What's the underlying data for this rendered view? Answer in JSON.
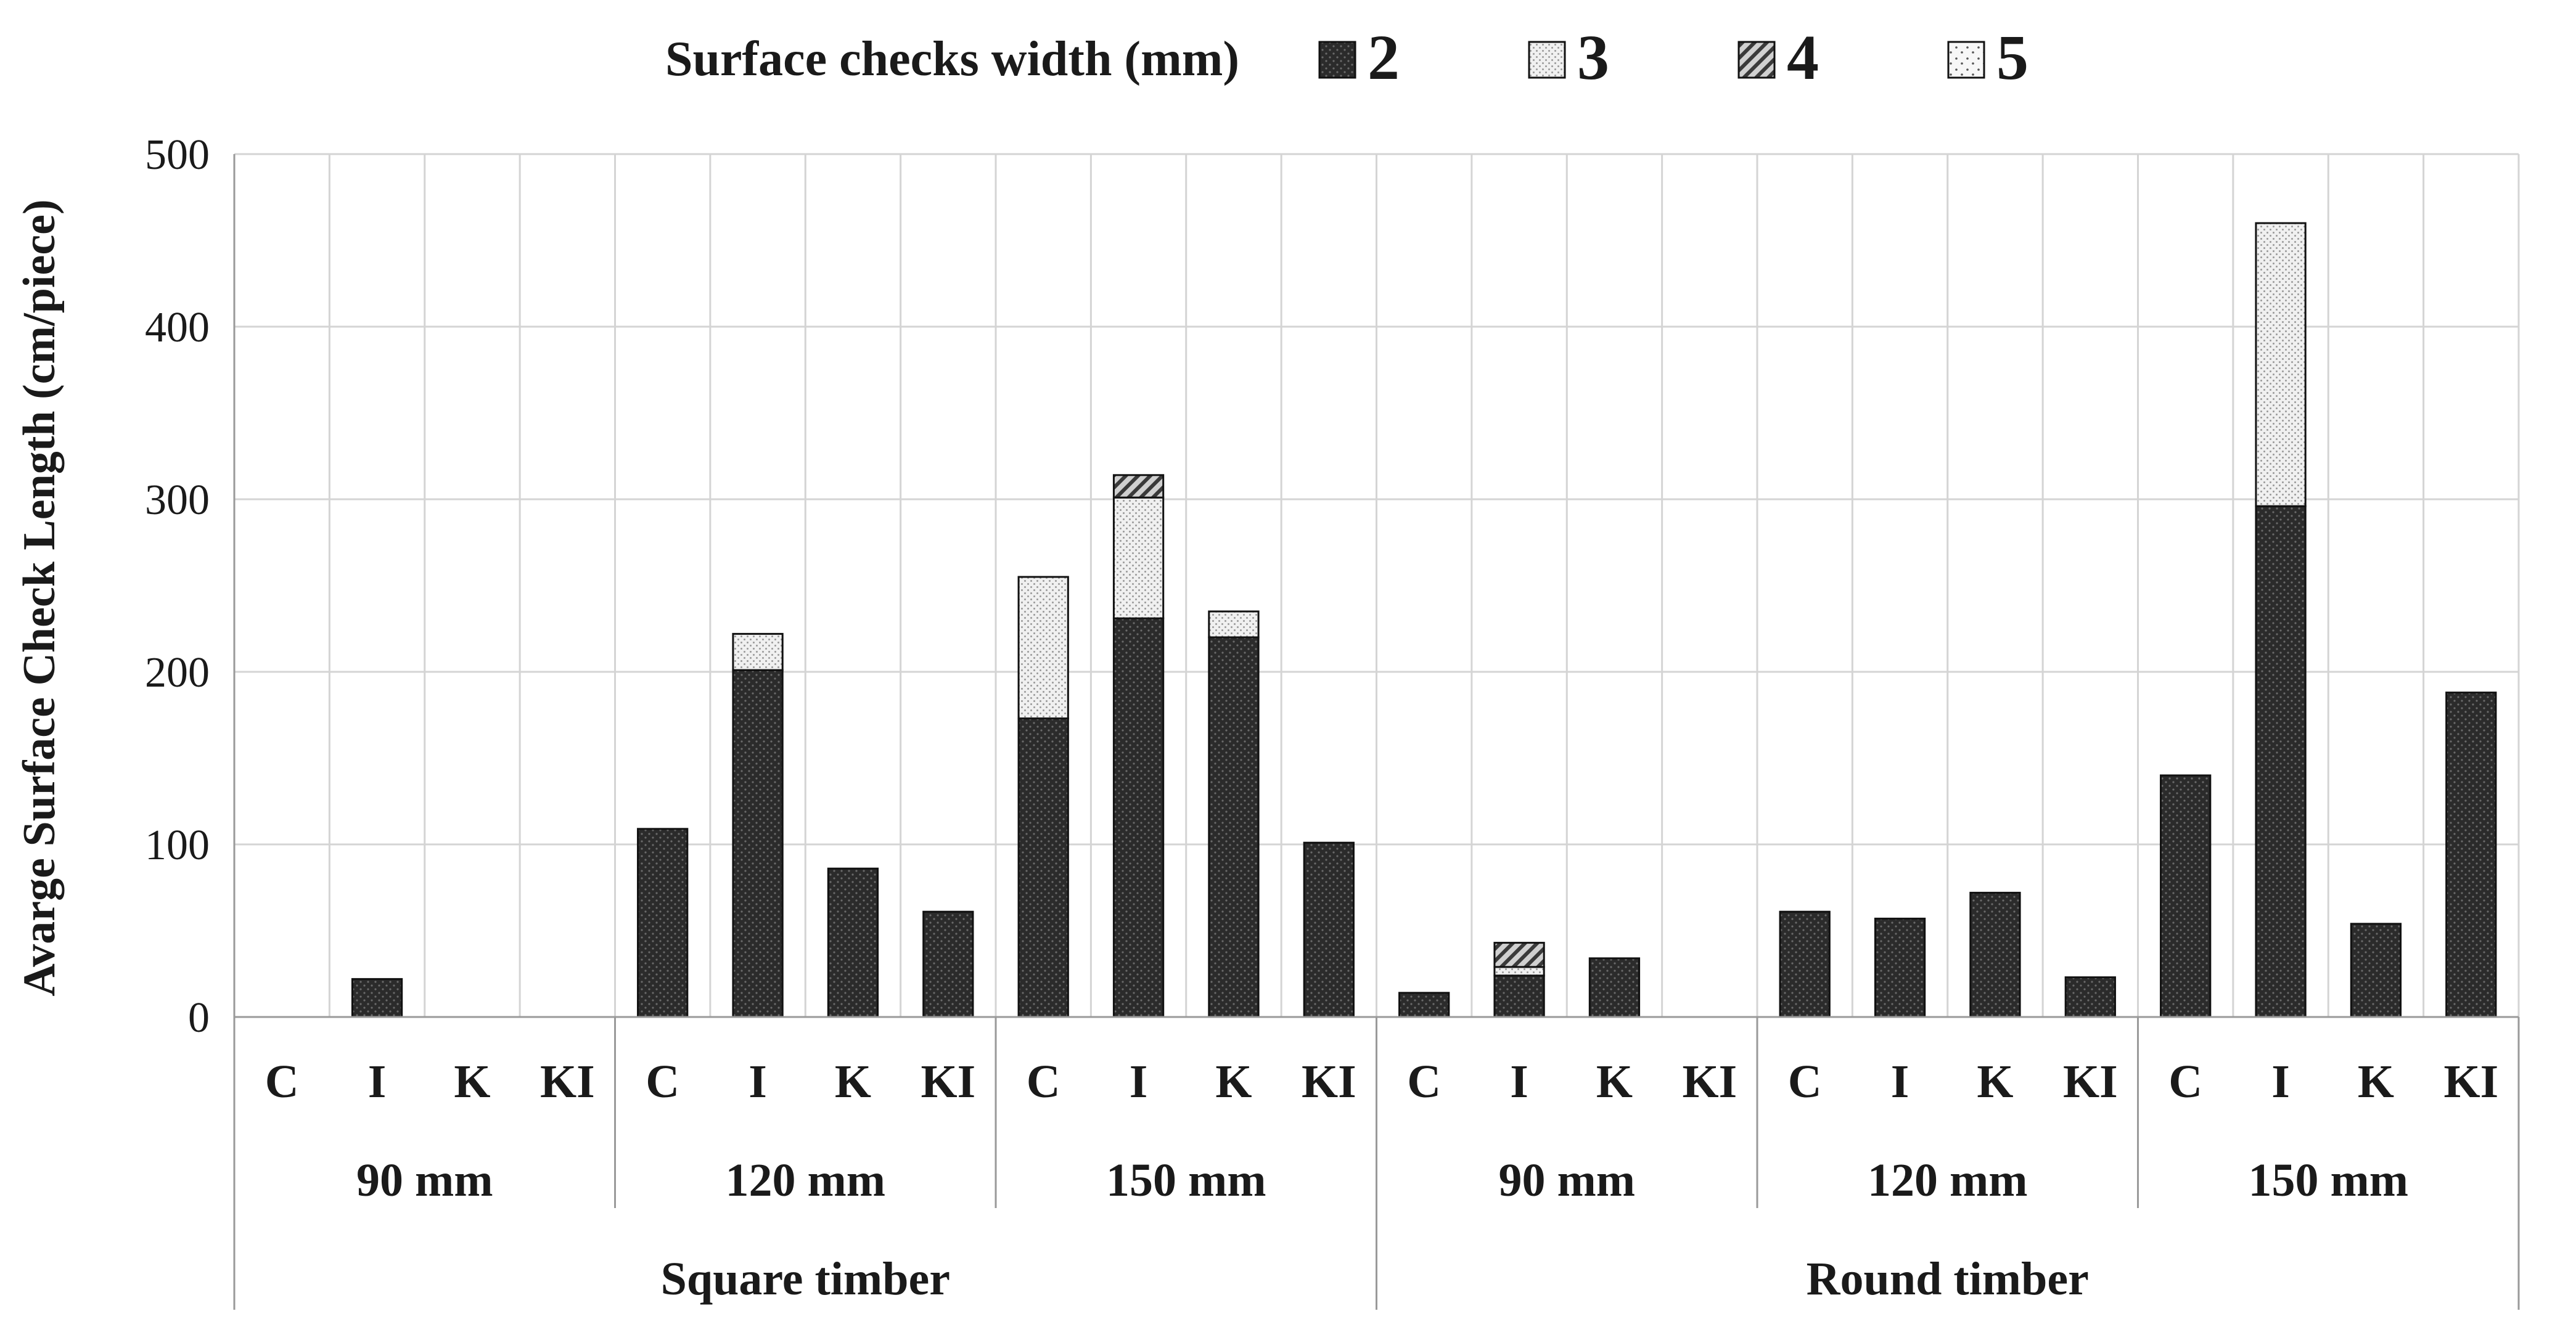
{
  "chart_data": {
    "type": "bar",
    "stacked": true,
    "ylabel": "Avarge Surface Check Length (cm/piece)",
    "ylim": [
      0,
      500
    ],
    "yticks": [
      0,
      100,
      200,
      300,
      400,
      500
    ],
    "grid": true,
    "legend": {
      "title": "Surface checks width (mm)",
      "position": "top",
      "entries": [
        "2",
        "3",
        "4",
        "5"
      ]
    },
    "categories": [
      "C",
      "I",
      "K",
      "KI",
      "C",
      "I",
      "K",
      "KI",
      "C",
      "I",
      "K",
      "KI",
      "C",
      "I",
      "K",
      "KI",
      "C",
      "I",
      "K",
      "KI",
      "C",
      "I",
      "K",
      "KI"
    ],
    "groups": [
      {
        "label": "90 mm",
        "count": 4
      },
      {
        "label": "120 mm",
        "count": 4
      },
      {
        "label": "150 mm",
        "count": 4
      },
      {
        "label": "90 mm",
        "count": 4
      },
      {
        "label": "120 mm",
        "count": 4
      },
      {
        "label": "150 mm",
        "count": 4
      }
    ],
    "supergroups": [
      {
        "label": "Square timber",
        "count": 12
      },
      {
        "label": "Round timber",
        "count": 12
      }
    ],
    "series": [
      {
        "name": "2",
        "pattern": "dark",
        "color": "#2b2b2b",
        "values": [
          0,
          22,
          0,
          0,
          109,
          201,
          86,
          61,
          173,
          231,
          220,
          101,
          14,
          24,
          34,
          0,
          61,
          57,
          72,
          23,
          140,
          296,
          54,
          188
        ]
      },
      {
        "name": "3",
        "pattern": "light-dots",
        "color": "#e8e8e8",
        "values": [
          0,
          0,
          0,
          0,
          0,
          21,
          0,
          0,
          82,
          70,
          15,
          0,
          0,
          5,
          0,
          0,
          0,
          0,
          0,
          0,
          0,
          164,
          0,
          0
        ]
      },
      {
        "name": "4",
        "pattern": "hatch",
        "color": "#8a8a8a",
        "values": [
          0,
          0,
          0,
          0,
          0,
          0,
          0,
          0,
          0,
          13,
          0,
          0,
          0,
          14,
          0,
          0,
          0,
          0,
          0,
          0,
          0,
          0,
          0,
          0
        ]
      },
      {
        "name": "5",
        "pattern": "sparse-dots",
        "color": "#f4f4f4",
        "values": [
          0,
          0,
          0,
          0,
          0,
          0,
          0,
          0,
          0,
          0,
          0,
          0,
          0,
          0,
          0,
          0,
          0,
          0,
          0,
          0,
          0,
          0,
          0,
          0
        ]
      }
    ]
  }
}
